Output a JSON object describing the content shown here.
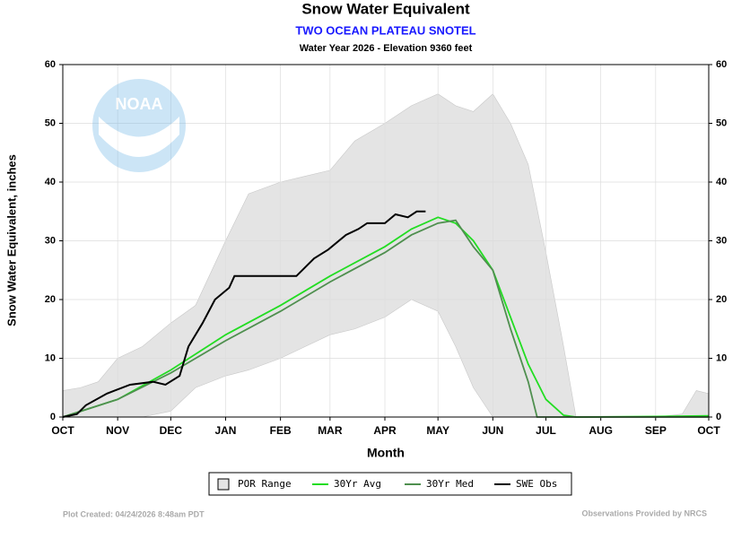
{
  "chart_data": {
    "type": "line",
    "title": "Snow Water Equivalent",
    "subtitle": "TWO OCEAN PLATEAU SNOTEL",
    "subtitle2": "Water Year 2026 -  Elevation 9360 feet",
    "y_label": "Snow Water Equivalent, inches",
    "x_label": "Month",
    "footer_left": "Plot Created: 04/24/2026 8:48am PDT",
    "footer_right": "Observations Provided by NRCS",
    "logo_text": "NOAA",
    "xlim": [
      0,
      365
    ],
    "xticks": [
      {
        "value": 0,
        "label": "OCT"
      },
      {
        "value": 31,
        "label": "NOV"
      },
      {
        "value": 61,
        "label": "DEC"
      },
      {
        "value": 92,
        "label": "JAN"
      },
      {
        "value": 123,
        "label": "FEB"
      },
      {
        "value": 151,
        "label": "MAR"
      },
      {
        "value": 182,
        "label": "APR"
      },
      {
        "value": 212,
        "label": "MAY"
      },
      {
        "value": 243,
        "label": "JUN"
      },
      {
        "value": 273,
        "label": "JUL"
      },
      {
        "value": 304,
        "label": "AUG"
      },
      {
        "value": 335,
        "label": "SEP"
      },
      {
        "value": 365,
        "label": "OCT"
      }
    ],
    "ylim": [
      0,
      60
    ],
    "yticks": [
      0,
      10,
      20,
      30,
      40,
      50,
      60
    ],
    "grid": true,
    "series": [
      {
        "name": "POR Range",
        "kind": "band",
        "color": "#e4e4e4",
        "x": [
          0,
          10,
          20,
          31,
          45,
          61,
          75,
          92,
          105,
          123,
          137,
          151,
          165,
          182,
          197,
          212,
          222,
          232,
          243,
          253,
          263,
          273,
          283,
          290,
          304,
          335,
          350,
          358,
          365
        ],
        "high": [
          4.5,
          5,
          6,
          10,
          12,
          16,
          19,
          30,
          38,
          40,
          41,
          42,
          47,
          50,
          53,
          55,
          53,
          52,
          55,
          50,
          43,
          28,
          12,
          0,
          0,
          0,
          0.5,
          4.5,
          4
        ],
        "low": [
          0,
          0,
          0,
          0,
          0,
          1,
          5,
          7,
          8,
          10,
          12,
          14,
          15,
          17,
          20,
          18,
          12,
          5,
          0,
          0,
          0,
          0,
          0,
          0,
          0,
          0,
          0,
          0,
          0
        ]
      },
      {
        "name": "30Yr Avg",
        "color": "#22dd22",
        "x": [
          0,
          31,
          61,
          92,
          123,
          151,
          182,
          197,
          212,
          222,
          232,
          243,
          253,
          263,
          273,
          283,
          290,
          335,
          365
        ],
        "values": [
          0,
          3,
          8,
          14,
          19,
          24,
          29,
          32,
          34,
          33,
          30,
          25,
          17,
          9,
          3,
          0.3,
          0,
          0.1,
          0.2
        ]
      },
      {
        "name": "30Yr Med",
        "color": "#4f8f4f",
        "x": [
          0,
          31,
          61,
          92,
          123,
          151,
          182,
          197,
          212,
          222,
          232,
          243,
          253,
          263,
          268,
          365
        ],
        "values": [
          0,
          3,
          7.5,
          13,
          18,
          23,
          28,
          31,
          33,
          33.5,
          29,
          25,
          15,
          6,
          0,
          0
        ]
      },
      {
        "name": "SWE Obs",
        "color": "#000000",
        "x": [
          0,
          8,
          13,
          25,
          38,
          51,
          58,
          66,
          71,
          79,
          86,
          94,
          97,
          112,
          132,
          142,
          150,
          160,
          167,
          172,
          182,
          188,
          195,
          200,
          205
        ],
        "values": [
          0,
          0.5,
          2,
          4,
          5.5,
          6,
          5.5,
          7,
          12,
          16,
          20,
          22,
          24,
          24,
          24,
          27,
          28.5,
          31,
          32,
          33,
          33,
          34.5,
          34,
          35,
          35
        ]
      }
    ]
  }
}
